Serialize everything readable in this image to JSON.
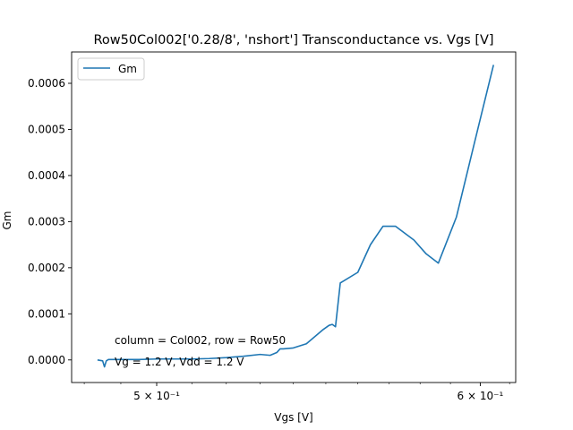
{
  "chart_data": {
    "type": "line",
    "title": "Row50Col002['0.28/8', 'nshort'] Transconductance vs. Vgs [V]",
    "xlabel": "Vgs [V]",
    "ylabel": "Gm",
    "xscale": "log",
    "xlim": [
      0.4766,
      0.6121
    ],
    "ylim": [
      -4.9e-05,
      0.000668
    ],
    "grid": false,
    "legend_position": "top-left",
    "x_ticks": [
      {
        "value": 0.5,
        "label": "5 × 10⁻¹"
      },
      {
        "value": 0.6,
        "label": "6 × 10⁻¹"
      }
    ],
    "y_ticks": [
      {
        "value": 0.0,
        "label": "0.0000"
      },
      {
        "value": 0.0001,
        "label": "0.0001"
      },
      {
        "value": 0.0002,
        "label": "0.0002"
      },
      {
        "value": 0.0003,
        "label": "0.0003"
      },
      {
        "value": 0.0004,
        "label": "0.0004"
      },
      {
        "value": 0.0005,
        "label": "0.0005"
      },
      {
        "value": 0.0006,
        "label": "0.0006"
      }
    ],
    "annotations": [
      "column = Col002, row = Row50",
      "Vg = 1.2 V, Vdd = 1.2 V"
    ],
    "series": [
      {
        "name": "Gm",
        "color": "#1f77b4",
        "x": [
          0.4836,
          0.485,
          0.4855,
          0.486,
          0.4866,
          0.49,
          0.495,
          0.5,
          0.505,
          0.51,
          0.515,
          0.52,
          0.525,
          0.53,
          0.533,
          0.535,
          0.536,
          0.537,
          0.54,
          0.544,
          0.549,
          0.551,
          0.552,
          0.553,
          0.5545,
          0.56,
          0.564,
          0.568,
          0.572,
          0.578,
          0.582,
          0.586,
          0.592,
          0.598,
          0.6045
        ],
        "values": [
          0.0,
          -2e-06,
          -1.5e-05,
          -2e-06,
          1e-06,
          1e-06,
          1e-06,
          2e-06,
          2e-06,
          2e-06,
          3e-06,
          5e-06,
          8e-06,
          1.2e-05,
          1e-05,
          1.6e-05,
          2.4e-05,
          2.4e-05,
          2.6e-05,
          3.5e-05,
          6.5e-05,
          7.5e-05,
          7.7e-05,
          7.2e-05,
          0.000167,
          0.00019,
          0.00025,
          0.00029,
          0.00029,
          0.00026,
          0.00023,
          0.00021,
          0.00031,
          0.00047,
          0.00064
        ]
      }
    ]
  }
}
